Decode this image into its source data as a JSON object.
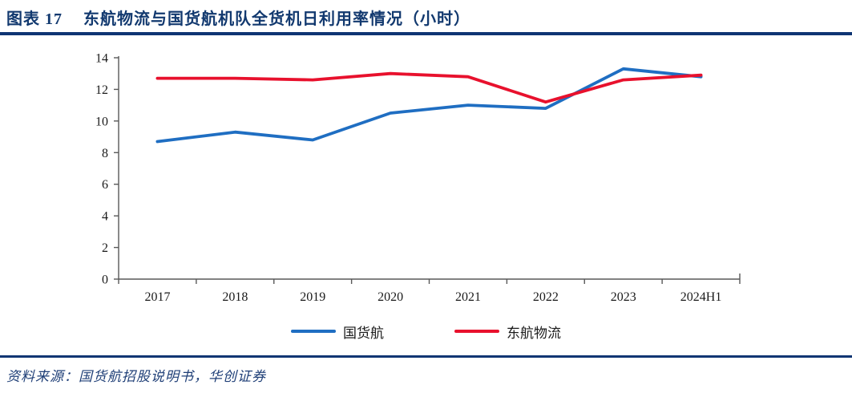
{
  "header": {
    "figure_label": "图表 17",
    "title": "东航物流与国货航机队全货机日利用率情况（小时）"
  },
  "chart_data": {
    "type": "line",
    "title": "东航物流与国货航机队全货机日利用率情况（小时）",
    "categories": [
      "2017",
      "2018",
      "2019",
      "2020",
      "2021",
      "2022",
      "2023",
      "2024H1"
    ],
    "series": [
      {
        "name": "国货航",
        "color": "#1F6EC2",
        "values": [
          8.7,
          9.3,
          8.8,
          10.5,
          11.0,
          10.8,
          13.3,
          12.8
        ]
      },
      {
        "name": "东航物流",
        "color": "#E8112D",
        "values": [
          12.7,
          12.7,
          12.6,
          13.0,
          12.8,
          11.2,
          12.6,
          12.9
        ]
      }
    ],
    "xlabel": "",
    "ylabel": "",
    "ylim": [
      0,
      14
    ],
    "yticks": [
      0,
      2,
      4,
      6,
      8,
      10,
      12,
      14
    ],
    "grid": false,
    "legend_position": "bottom",
    "axis_color": "#595959"
  },
  "footer": {
    "source_label": "资料来源：",
    "source_text": "国货航招股说明书，华创证券"
  },
  "colors": {
    "navy_rule": "#0F3573",
    "title_navy": "#12396F",
    "series_blue": "#1F6EC2",
    "series_red": "#E8112D"
  }
}
